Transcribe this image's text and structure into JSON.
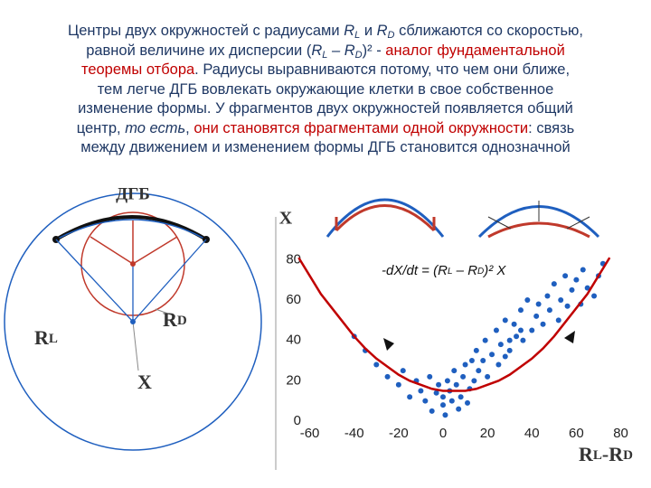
{
  "text": {
    "lines": [
      [
        {
          "t": "Центры двух окружностей с радиусами "
        },
        {
          "t": "R",
          "i": true
        },
        {
          "t": "L",
          "i": true,
          "sub": true
        },
        {
          "t": " и "
        },
        {
          "t": "R",
          "i": true
        },
        {
          "t": "D",
          "i": true,
          "sub": true
        },
        {
          "t": " сближаются со скоростью,"
        }
      ],
      [
        {
          "t": "равной величине их дисперсии ("
        },
        {
          "t": "R",
          "i": true
        },
        {
          "t": "L",
          "i": true,
          "sub": true
        },
        {
          "t": " – ",
          "i": true
        },
        {
          "t": "R",
          "i": true
        },
        {
          "t": "D",
          "i": true,
          "sub": true
        },
        {
          "t": ")² - "
        },
        {
          "t": "аналог фундаментальной",
          "red": true
        }
      ],
      [
        {
          "t": "теоремы отбора",
          "red": true
        },
        {
          "t": ". Радиусы выравниваются потому, что чем они ближе,"
        }
      ],
      [
        {
          "t": "тем легче ДГБ вовлекать окружающие клетки в свое собственное"
        }
      ],
      [
        {
          "t": "изменение формы. У фрагментов двух окружностей появляется общий"
        }
      ],
      [
        {
          "t": "центр, "
        },
        {
          "t": "то есть",
          "i": true
        },
        {
          "t": ", "
        },
        {
          "t": "они становятся фрагментами одной окружности",
          "red": true
        },
        {
          "t": ": связь"
        }
      ],
      [
        {
          "t": "между движением и изменением формы ДГБ становится однозначной"
        }
      ]
    ]
  },
  "diagram": {
    "top_label": "ДГБ",
    "rl_label": [
      "R",
      "L"
    ],
    "rd_label": [
      "R",
      "D"
    ],
    "x_label": "X"
  },
  "chart_data": {
    "type": "scatter",
    "ylabel": "X",
    "xlabel_parts": [
      "R",
      "L",
      "-R",
      "D"
    ],
    "annotation": [
      {
        "t": "-dX/dt = (R"
      },
      {
        "t": "L",
        "sub": true
      },
      {
        "t": " – R"
      },
      {
        "t": "D",
        "sub": true
      },
      {
        "t": ")² X"
      }
    ],
    "xlim": [
      -70,
      81
    ],
    "ylim": [
      0,
      90
    ],
    "xticks": [
      -60,
      -40,
      -20,
      0,
      20,
      40,
      60,
      80
    ],
    "yticks": [
      0,
      20,
      40,
      60,
      80
    ],
    "series": [
      {
        "color": "#1f5fbf",
        "x": [
          -40,
          -35,
          -30,
          -25,
          -20,
          -18,
          -15,
          -12,
          -10,
          -8,
          -6,
          -5,
          -3,
          -2,
          0,
          0,
          1,
          2,
          3,
          4,
          5,
          6,
          7,
          8,
          9,
          10,
          11,
          12,
          13,
          14,
          15,
          16,
          18,
          19,
          20,
          22,
          24,
          25,
          26,
          28,
          28,
          30,
          30,
          32,
          33,
          35,
          35,
          36,
          38,
          40,
          42,
          43,
          45,
          47,
          48,
          50,
          52,
          53,
          55,
          56,
          58,
          60,
          62,
          63,
          65,
          68,
          70,
          72
        ],
        "values": [
          42,
          35,
          28,
          22,
          18,
          25,
          12,
          20,
          15,
          10,
          22,
          5,
          14,
          18,
          8,
          12,
          3,
          20,
          15,
          10,
          25,
          18,
          6,
          12,
          22,
          28,
          9,
          16,
          30,
          20,
          35,
          25,
          30,
          40,
          22,
          33,
          45,
          28,
          38,
          50,
          32,
          35,
          40,
          48,
          42,
          55,
          45,
          40,
          60,
          45,
          52,
          58,
          48,
          62,
          55,
          68,
          50,
          60,
          72,
          57,
          65,
          70,
          58,
          75,
          66,
          62,
          72,
          78
        ]
      },
      {
        "type": "line",
        "color": "#c00000",
        "x": [
          -65,
          -60,
          -55,
          -50,
          -45,
          -40,
          -35,
          -30,
          -25,
          -20,
          -15,
          -10,
          -5,
          0,
          5,
          10,
          15,
          20,
          25,
          30,
          35,
          40,
          45,
          50,
          55,
          60,
          65,
          70,
          75
        ],
        "values": [
          81,
          72,
          63,
          56,
          49,
          42,
          36,
          31,
          27,
          23,
          20,
          18,
          16,
          15,
          15,
          15,
          16,
          18,
          20,
          23,
          27,
          31,
          36,
          42,
          49,
          56,
          63,
          72,
          81
        ]
      }
    ]
  }
}
